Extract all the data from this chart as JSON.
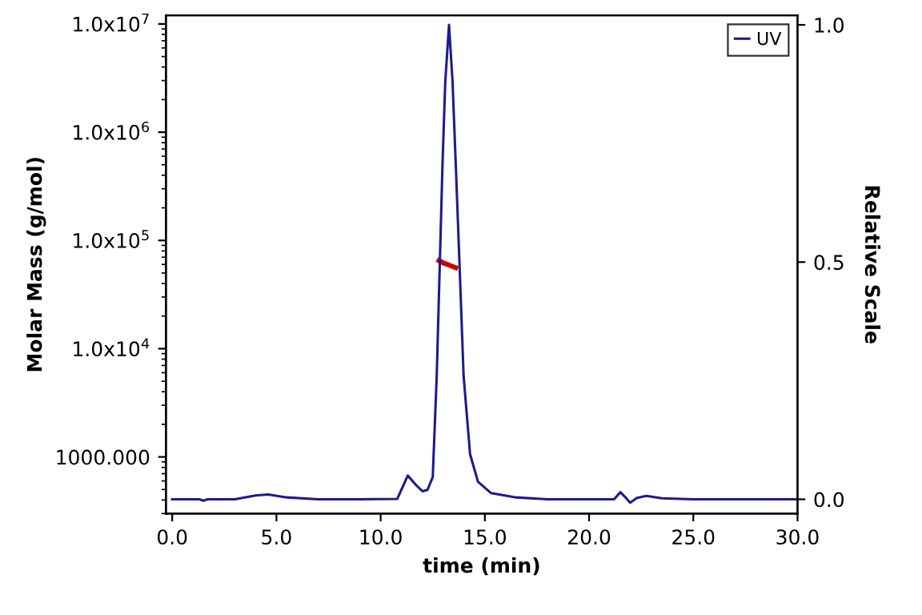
{
  "chart_data": {
    "type": "line",
    "xlabel": "time (min)",
    "ylabel": "Molar Mass (g/mol)",
    "y2label": "Relative Scale",
    "xlim": [
      -0.3,
      30.0
    ],
    "xticks": [
      {
        "value": 0,
        "label": "0.0"
      },
      {
        "value": 5,
        "label": "5.0"
      },
      {
        "value": 10,
        "label": "10.0"
      },
      {
        "value": 15,
        "label": "15.0"
      },
      {
        "value": 20,
        "label": "20.0"
      },
      {
        "value": 25,
        "label": "25.0"
      },
      {
        "value": 30,
        "label": "30.0"
      }
    ],
    "log": "y",
    "ylim": [
      300,
      12000000
    ],
    "yticks": [
      {
        "value": 1000,
        "label": "1000.000"
      },
      {
        "value": 10000,
        "label": "1.0x10$^{4}$"
      },
      {
        "value": 100000,
        "label": "1.0x10$^{5}$"
      },
      {
        "value": 1000000,
        "label": "1.0x10$^{6}$"
      },
      {
        "value": 10000000,
        "label": "1.0x10$^{7}$"
      }
    ],
    "y2lim": [
      -0.03,
      1.02
    ],
    "y2ticks": [
      {
        "value": 0,
        "label": "0.0"
      },
      {
        "value": 0.5,
        "label": "0.5"
      },
      {
        "value": 1,
        "label": "1.0"
      }
    ],
    "legend": "top right",
    "grid": false,
    "series": [
      {
        "name": "UV",
        "color": "#1c1c8c",
        "axis": "y2",
        "x": [
          0,
          1.3,
          1.5,
          1.7,
          3.0,
          4.0,
          4.6,
          5.5,
          7.0,
          9.0,
          10.8,
          11.3,
          11.7,
          12.0,
          12.25,
          12.5,
          12.69,
          12.84,
          12.97,
          13.1,
          13.28,
          13.45,
          13.6,
          13.78,
          13.98,
          14.29,
          14.67,
          15.3,
          16.5,
          18.0,
          21.2,
          21.5,
          21.75,
          21.97,
          22.3,
          22.75,
          23.5,
          25.0,
          30.0
        ],
        "values": [
          0,
          0,
          -0.003,
          0,
          0,
          0.008,
          0.01,
          0.004,
          0,
          0,
          0.001,
          0.05,
          0.03,
          0.017,
          0.02,
          0.047,
          0.26,
          0.5,
          0.71,
          0.88,
          1.0,
          0.88,
          0.71,
          0.5,
          0.26,
          0.095,
          0.037,
          0.013,
          0.004,
          0,
          0,
          0.015,
          0.004,
          -0.007,
          0.003,
          0.007,
          0.002,
          0,
          0
        ]
      },
      {
        "color": "#cc0000",
        "axis": "y",
        "x": [
          12.8,
          13.0,
          13.2,
          13.4,
          13.6
        ],
        "values": [
          65000,
          62000,
          60000,
          58000,
          56000
        ]
      }
    ]
  }
}
